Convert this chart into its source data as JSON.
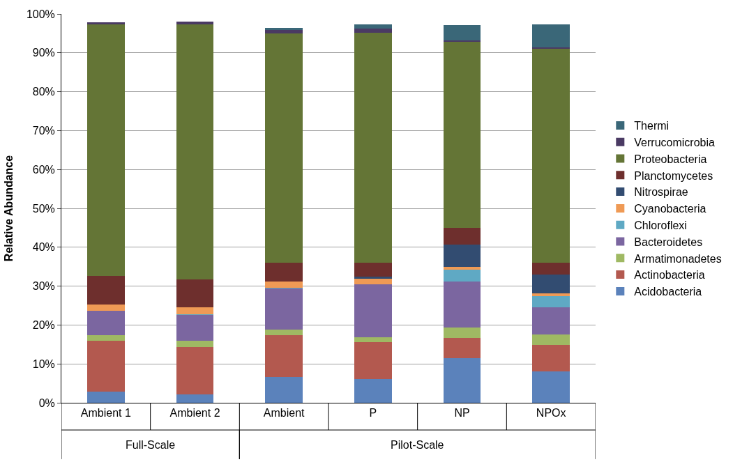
{
  "chart_data": {
    "type": "bar",
    "stacked": true,
    "ylabel": "Relative Abundance",
    "categories": [
      "Ambient 1",
      "Ambient 2",
      "Ambient",
      "P",
      "NP",
      "NPOx"
    ],
    "annotations": [
      "Full-Scale",
      "Pilot-Scale"
    ],
    "ylim": [
      0,
      100
    ],
    "yticks": [
      {
        "value": 0,
        "label": "0%"
      },
      {
        "value": 10,
        "label": "10%"
      },
      {
        "value": 20,
        "label": "20%"
      },
      {
        "value": 30,
        "label": "30%"
      },
      {
        "value": 40,
        "label": "40%"
      },
      {
        "value": 50,
        "label": "50%"
      },
      {
        "value": 60,
        "label": "60%"
      },
      {
        "value": 70,
        "label": "70%"
      },
      {
        "value": 80,
        "label": "80%"
      },
      {
        "value": 90,
        "label": "90%"
      },
      {
        "value": 100,
        "label": "100%"
      }
    ],
    "grid": "y",
    "legend": "right",
    "series": [
      {
        "name": "Acidobacteria",
        "color": "#5b82bb",
        "values": [
          2.8,
          2.2,
          6.6,
          6.1,
          11.5,
          8.1
        ]
      },
      {
        "name": "Actinobacteria",
        "color": "#b3594f",
        "values": [
          13.1,
          12.2,
          10.8,
          9.5,
          5.2,
          6.8
        ]
      },
      {
        "name": "Armatimonadetes",
        "color": "#9fb963",
        "values": [
          1.5,
          1.5,
          1.5,
          1.2,
          2.6,
          2.6
        ]
      },
      {
        "name": "Bacteroidetes",
        "color": "#7b66a0",
        "values": [
          6.2,
          6.7,
          10.5,
          13.7,
          11.9,
          7.1
        ]
      },
      {
        "name": "Chloroflexi",
        "color": "#5fa9c4",
        "values": [
          0,
          0.1,
          0.1,
          0,
          3.1,
          2.8
        ]
      },
      {
        "name": "Cyanobacteria",
        "color": "#ef9a55",
        "values": [
          1.7,
          1.8,
          1.6,
          1.4,
          0.6,
          0.7
        ]
      },
      {
        "name": "Nitrospirae",
        "color": "#324c71",
        "values": [
          0,
          0,
          null,
          0.5,
          5.7,
          4.9
        ]
      },
      {
        "name": "Planctomycetes",
        "color": "#6e2f2d",
        "values": [
          7.3,
          7.3,
          4.9,
          3.7,
          4.3,
          3.1
        ]
      },
      {
        "name": "Proteobacteria",
        "color": "#647536",
        "values": [
          64.7,
          65.6,
          58.9,
          59.0,
          48.0,
          55.1
        ]
      },
      {
        "name": "Verrucomicrobia",
        "color": "#4a3a63",
        "values": [
          0.5,
          0.6,
          0.9,
          1.1,
          0.3,
          0.2
        ]
      },
      {
        "name": "Thermi",
        "color": "#3a6778",
        "values": [
          0,
          0,
          0.7,
          1.2,
          4.0,
          6.0
        ]
      }
    ]
  }
}
